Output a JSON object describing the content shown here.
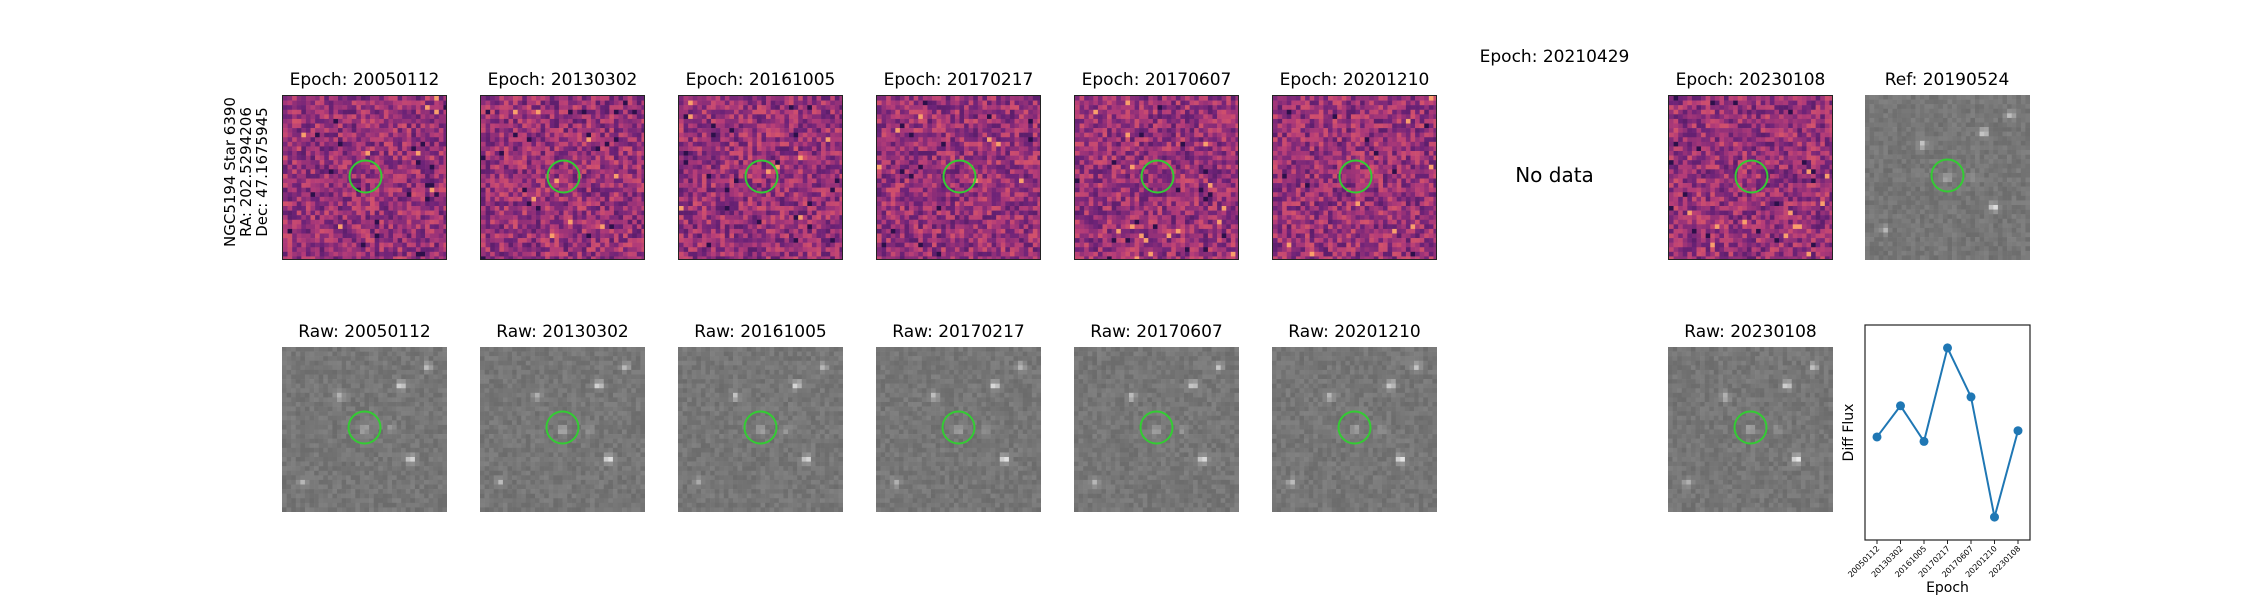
{
  "target": {
    "name": "NGC5194 Star 6390",
    "ra": "RA: 202.5294206",
    "dec": "Dec: 47.1675945"
  },
  "epochs": [
    {
      "id": "20050112",
      "title": "Epoch: 20050112",
      "raw_title": "Raw: 20050112",
      "has_data": true
    },
    {
      "id": "20130302",
      "title": "Epoch: 20130302",
      "raw_title": "Raw: 20130302",
      "has_data": true
    },
    {
      "id": "20161005",
      "title": "Epoch: 20161005",
      "raw_title": "Raw: 20161005",
      "has_data": true
    },
    {
      "id": "20170217",
      "title": "Epoch: 20170217",
      "raw_title": "Raw: 20170217",
      "has_data": true
    },
    {
      "id": "20170607",
      "title": "Epoch: 20170607",
      "raw_title": "Raw: 20170607",
      "has_data": true
    },
    {
      "id": "20201210",
      "title": "Epoch: 20201210",
      "raw_title": "Raw: 20201210",
      "has_data": true
    },
    {
      "id": "20210429",
      "title": "Epoch: 20210429",
      "raw_title": "",
      "has_data": false,
      "no_data_text": "No data"
    },
    {
      "id": "20230108",
      "title": "Epoch: 20230108",
      "raw_title": "Raw: 20230108",
      "has_data": true
    }
  ],
  "reference": {
    "title": "Ref: 20190524"
  },
  "colors": {
    "circle": "#33cc33",
    "series": "#1f77b4",
    "diff_base": "#b0457a",
    "raw_base": "#808080"
  },
  "chart_data": {
    "type": "line",
    "title": "",
    "xlabel": "Epoch",
    "ylabel": "Diff Flux",
    "categories": [
      "20050112",
      "20130302",
      "20161005",
      "20170217",
      "20170607",
      "20201210",
      "20230108"
    ],
    "values": [
      0.0,
      0.35,
      -0.05,
      1.0,
      0.45,
      -0.9,
      0.07
    ],
    "ylim": [
      -1.0,
      1.1
    ],
    "grid": false,
    "y_tick_labels_visible": false
  }
}
